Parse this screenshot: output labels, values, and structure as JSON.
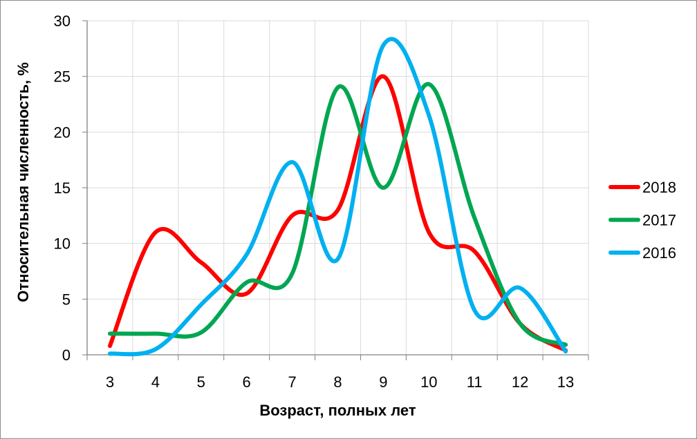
{
  "chart_data": {
    "type": "line",
    "smooth": true,
    "title": "",
    "xlabel": "Возраст, полных лет",
    "ylabel": "Относительная численность, %",
    "categories": [
      "3",
      "4",
      "5",
      "6",
      "7",
      "8",
      "9",
      "10",
      "11",
      "12",
      "13"
    ],
    "ylim": [
      0,
      30
    ],
    "yticks": [
      "0",
      "5",
      "10",
      "15",
      "20",
      "25",
      "30"
    ],
    "grid": true,
    "legend_position": "right",
    "series": [
      {
        "name": "2018",
        "color": "#ff0000",
        "values": [
          0.8,
          11.0,
          8.3,
          5.5,
          12.5,
          13.0,
          25.0,
          11.0,
          9.3,
          2.8,
          0.4
        ]
      },
      {
        "name": "2017",
        "color": "#00a651",
        "values": [
          1.9,
          1.9,
          2.0,
          6.5,
          7.3,
          24.0,
          15.0,
          24.3,
          12.3,
          2.8,
          0.9
        ]
      },
      {
        "name": "2016",
        "color": "#00b0f0",
        "values": [
          0.1,
          0.5,
          4.5,
          9.0,
          17.3,
          8.6,
          27.8,
          21.5,
          4.0,
          6.0,
          0.3
        ]
      }
    ]
  }
}
